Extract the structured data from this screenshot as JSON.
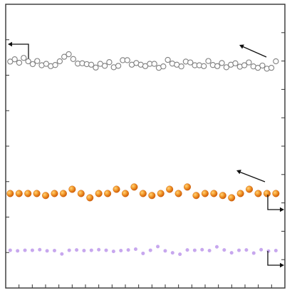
{
  "chart_data": {
    "type": "scatter",
    "title": "",
    "xlabel": "",
    "ylabel_left": "",
    "ylabel_right": "",
    "grid": false,
    "x": [
      1,
      2,
      3,
      4,
      5,
      6,
      7,
      8,
      9,
      10,
      11,
      12,
      13,
      14,
      15,
      16,
      17,
      18,
      19,
      20,
      21,
      22,
      23,
      24,
      25,
      26,
      27,
      28,
      29,
      30,
      31,
      32,
      33,
      34,
      35,
      36,
      37,
      38,
      39,
      40,
      41,
      42,
      43,
      44,
      45,
      46,
      47,
      48,
      49,
      50,
      51,
      52,
      53,
      54,
      55,
      56,
      57,
      58,
      59,
      60
    ],
    "xlim": [
      0,
      62
    ],
    "xtick_count": 21,
    "ylim_left": [
      0,
      100
    ],
    "ylim_right": [
      0,
      100
    ],
    "ytick_count_left": 8,
    "ytick_count_right": 10,
    "series": [
      {
        "name": "",
        "axis": "left",
        "marker": "open-circle",
        "color": "#7f7f7f",
        "values": [
          79.8,
          80.6,
          79.4,
          81.1,
          79.9,
          78.9,
          80.0,
          78.5,
          79.0,
          78.2,
          78.6,
          79.9,
          81.5,
          82.4,
          80.7,
          79.1,
          79.2,
          78.9,
          78.7,
          77.7,
          79.0,
          78.3,
          79.6,
          77.8,
          78.3,
          80.3,
          80.3,
          78.7,
          79.3,
          78.7,
          78.2,
          79.0,
          79.0,
          77.6,
          78.1,
          80.4,
          79.1,
          78.7,
          78.1,
          79.8,
          79.5,
          78.5,
          78.5,
          78.2,
          80.0,
          78.6,
          78.2,
          79.3,
          77.8,
          78.7,
          79.2,
          78.0,
          78.5,
          79.5,
          78.1,
          77.6,
          78.4,
          77.3,
          77.6,
          79.9
        ]
      },
      {
        "name": "",
        "axis": "right",
        "marker": "filled-sphere",
        "color": "#f07f1a",
        "values": [
          33.3,
          33.3,
          33.3,
          33.3,
          32.6,
          33.3,
          33.3,
          34.8,
          33.3,
          31.8,
          33.3,
          33.3,
          34.8,
          33.3,
          35.6,
          33.3,
          32.6,
          33.3,
          34.8,
          33.3,
          35.6,
          32.6,
          33.3,
          33.3,
          32.6,
          31.8,
          33.3,
          34.8,
          33.3,
          33.3,
          33.3
        ]
      },
      {
        "name": "",
        "axis": "right",
        "marker": "small-dot",
        "color": "#c7a7ee",
        "values": [
          13.3,
          13.1,
          13.3,
          13.3,
          13.5,
          13.1,
          13.2,
          12.0,
          13.3,
          13.4,
          13.2,
          13.3,
          13.5,
          13.3,
          12.9,
          13.2,
          13.4,
          13.7,
          12.2,
          13.3,
          14.6,
          13.1,
          12.4,
          11.9,
          13.4,
          13.3,
          13.5,
          13.2,
          14.5,
          13.4,
          12.4,
          13.3,
          13.4,
          12.3,
          13.5,
          13.0,
          13.2
        ]
      }
    ],
    "annotations": [
      {
        "symbol": "left-pointing-bracket-arrow",
        "series": 0,
        "location": "upper-left"
      },
      {
        "symbol": "up-left-arrow",
        "series": 0,
        "location": "upper-right"
      },
      {
        "symbol": "up-left-arrow",
        "series": 1,
        "location": "middle-right"
      },
      {
        "symbol": "right-pointing-bracket-arrow",
        "series": 1,
        "location": "middle-right"
      },
      {
        "symbol": "right-pointing-bracket-arrow",
        "series": 2,
        "location": "lower-right"
      }
    ]
  }
}
